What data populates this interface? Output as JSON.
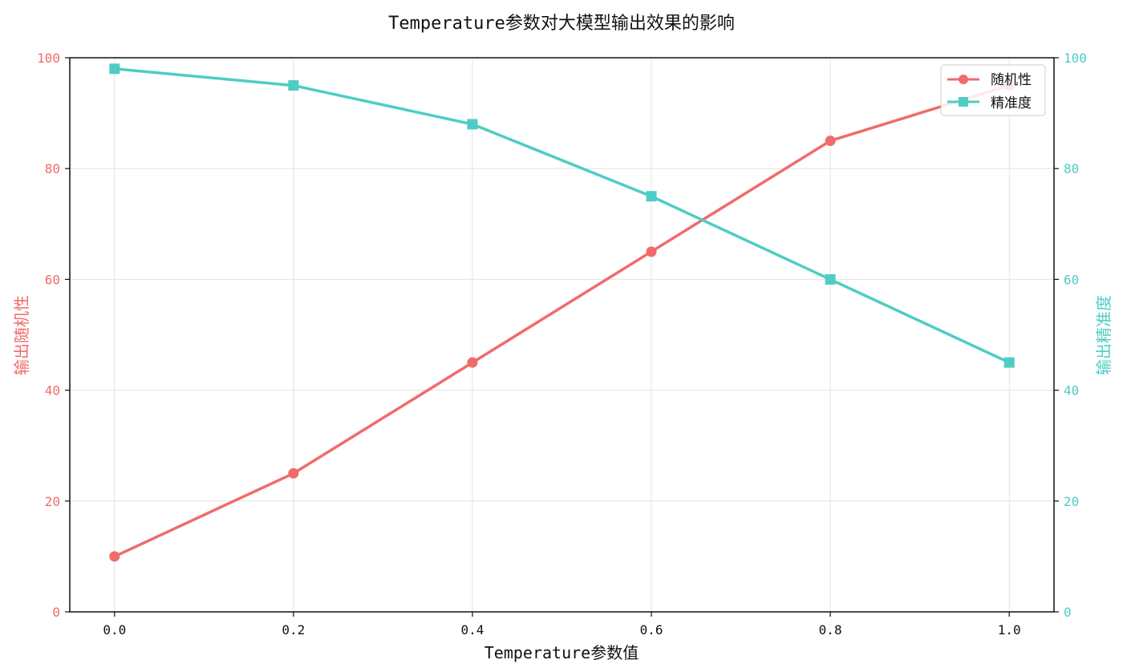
{
  "chart_data": {
    "type": "line",
    "title": "Temperature参数对大模型输出效果的影响",
    "xlabel": "Temperature参数值",
    "ylabel_left": "输出随机性",
    "ylabel_right": "输出精准度",
    "x": [
      0.0,
      0.2,
      0.4,
      0.6,
      0.8,
      1.0
    ],
    "x_ticks": [
      "0.0",
      "0.2",
      "0.4",
      "0.6",
      "0.8",
      "1.0"
    ],
    "xlim": [
      -0.05,
      1.05
    ],
    "ylim_left": [
      0,
      100
    ],
    "ylim_right": [
      0,
      100
    ],
    "y_ticks": [
      "0",
      "20",
      "40",
      "60",
      "80",
      "100"
    ],
    "grid": true,
    "legend_position": "top-right",
    "series": [
      {
        "name": "随机性",
        "axis": "left",
        "marker": "circle",
        "color": "#f06b6b",
        "values": [
          10,
          25,
          45,
          65,
          85,
          95
        ]
      },
      {
        "name": "精准度",
        "axis": "right",
        "marker": "square",
        "color": "#4ecdc4",
        "values": [
          98,
          95,
          88,
          75,
          60,
          45
        ]
      }
    ]
  }
}
